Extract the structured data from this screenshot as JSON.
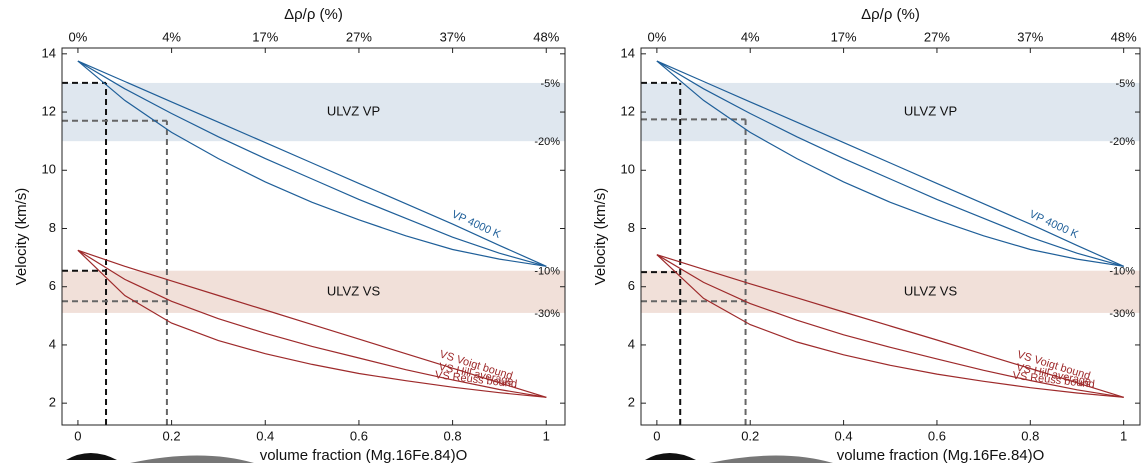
{
  "chart_data": [
    {
      "type": "line",
      "x_label": "volume fraction (Mg.16Fe.84)O",
      "x2_label": "Δρ/ρ (%)",
      "y_label": "Velocity (km/s)",
      "xlim": [
        -0.034,
        1.04
      ],
      "ylim": [
        1.25,
        14.2
      ],
      "xticks": [
        0,
        0.2,
        0.4,
        0.6,
        0.8,
        1
      ],
      "x2ticks": [
        {
          "value": 0,
          "label": "0%"
        },
        {
          "value": 0.2,
          "label": "4%"
        },
        {
          "value": 0.4,
          "label": "17%"
        },
        {
          "value": 0.6,
          "label": "27%"
        },
        {
          "value": 0.8,
          "label": "37%"
        },
        {
          "value": 1,
          "label": "48%"
        }
      ],
      "yticks": [
        2,
        4,
        6,
        8,
        10,
        12,
        14
      ],
      "bands": [
        {
          "label": "ULVZ VP",
          "from": 11.0,
          "to": 13.0,
          "top_label": "-5%",
          "bottom_label": "-20%",
          "color": "#dfe7ef"
        },
        {
          "label": "ULVZ VS",
          "from": 5.1,
          "to": 6.55,
          "top_label": "-10%",
          "bottom_label": "-30%",
          "color": "#f1e0d9"
        }
      ],
      "guides": [
        {
          "x": 0.06,
          "y": [
            13.0,
            6.55
          ],
          "color": "#111111"
        },
        {
          "x": 0.19,
          "y": [
            11.7,
            5.5
          ],
          "color": "#666666"
        }
      ],
      "x": [
        0,
        0.1,
        0.2,
        0.3,
        0.4,
        0.5,
        0.6,
        0.7,
        0.8,
        0.9,
        1
      ],
      "series": [
        {
          "name": "VP  4000 K",
          "color": "#1f5f99",
          "values": [
            13.75,
            13.05,
            12.35,
            11.65,
            10.95,
            10.25,
            9.55,
            8.85,
            8.15,
            7.42,
            6.7
          ]
        },
        {
          "name": null,
          "color": "#1f5f99",
          "values": [
            13.75,
            12.8,
            11.95,
            11.15,
            10.4,
            9.7,
            9.0,
            8.35,
            7.7,
            7.15,
            6.7
          ]
        },
        {
          "name": null,
          "color": "#1f5f99",
          "values": [
            13.75,
            12.4,
            11.3,
            10.4,
            9.6,
            8.9,
            8.3,
            7.75,
            7.28,
            6.95,
            6.7
          ]
        },
        {
          "name": "VS  Voigt bound",
          "color": "#9e2a2b",
          "values": [
            7.25,
            6.7,
            6.2,
            5.7,
            5.2,
            4.7,
            4.2,
            3.7,
            3.2,
            2.7,
            2.2
          ]
        },
        {
          "name": "VS  Hill average",
          "color": "#9e2a2b",
          "values": [
            7.25,
            6.25,
            5.5,
            4.9,
            4.4,
            3.95,
            3.55,
            3.15,
            2.8,
            2.47,
            2.2
          ]
        },
        {
          "name": "VS  Reuss bound",
          "color": "#9e2a2b",
          "values": [
            7.25,
            5.7,
            4.75,
            4.15,
            3.7,
            3.33,
            3.02,
            2.77,
            2.55,
            2.36,
            2.2
          ]
        }
      ]
    },
    {
      "type": "line",
      "x_label": "volume fraction (Mg.16Fe.84)O",
      "x2_label": "Δρ/ρ (%)",
      "y_label": "Velocity (km/s)",
      "xlim": [
        -0.034,
        1.035
      ],
      "ylim": [
        1.25,
        14.2
      ],
      "xticks": [
        0,
        0.2,
        0.4,
        0.6,
        0.8,
        1
      ],
      "x2ticks": [
        {
          "value": 0,
          "label": "0%"
        },
        {
          "value": 0.2,
          "label": "4%"
        },
        {
          "value": 0.4,
          "label": "17%"
        },
        {
          "value": 0.6,
          "label": "27%"
        },
        {
          "value": 0.8,
          "label": "37%"
        },
        {
          "value": 1,
          "label": "48%"
        }
      ],
      "yticks": [
        2,
        4,
        6,
        8,
        10,
        12,
        14
      ],
      "bands": [
        {
          "label": "ULVZ VP",
          "from": 11.0,
          "to": 13.0,
          "top_label": "-5%",
          "bottom_label": "-20%",
          "color": "#dfe7ef"
        },
        {
          "label": "ULVZ VS",
          "from": 5.1,
          "to": 6.55,
          "top_label": "-10%",
          "bottom_label": "-30%",
          "color": "#f1e0d9"
        }
      ],
      "guides": [
        {
          "x": 0.05,
          "y": [
            13.0,
            6.5
          ],
          "color": "#111111"
        },
        {
          "x": 0.19,
          "y": [
            11.75,
            5.5
          ],
          "color": "#666666"
        }
      ],
      "x": [
        0,
        0.1,
        0.2,
        0.3,
        0.4,
        0.5,
        0.6,
        0.7,
        0.8,
        0.9,
        1
      ],
      "series": [
        {
          "name": "VP  4000 K",
          "color": "#1f5f99",
          "values": [
            13.75,
            13.05,
            12.35,
            11.65,
            10.95,
            10.25,
            9.55,
            8.85,
            8.15,
            7.42,
            6.7
          ]
        },
        {
          "name": null,
          "color": "#1f5f99",
          "values": [
            13.75,
            12.8,
            11.95,
            11.15,
            10.4,
            9.7,
            9.0,
            8.35,
            7.7,
            7.15,
            6.7
          ]
        },
        {
          "name": null,
          "color": "#1f5f99",
          "values": [
            13.75,
            12.4,
            11.3,
            10.4,
            9.6,
            8.9,
            8.3,
            7.75,
            7.28,
            6.95,
            6.7
          ]
        },
        {
          "name": "VS  Voigt bound",
          "color": "#9e2a2b",
          "values": [
            7.1,
            6.6,
            6.1,
            5.62,
            5.13,
            4.65,
            4.17,
            3.68,
            3.19,
            2.7,
            2.2
          ]
        },
        {
          "name": "VS  Hill average",
          "color": "#9e2a2b",
          "values": [
            7.1,
            6.15,
            5.42,
            4.85,
            4.35,
            3.92,
            3.52,
            3.13,
            2.78,
            2.46,
            2.2
          ]
        },
        {
          "name": "VS  Reuss bound",
          "color": "#9e2a2b",
          "values": [
            7.1,
            5.6,
            4.7,
            4.1,
            3.66,
            3.3,
            3.0,
            2.75,
            2.53,
            2.35,
            2.2
          ]
        }
      ]
    }
  ]
}
